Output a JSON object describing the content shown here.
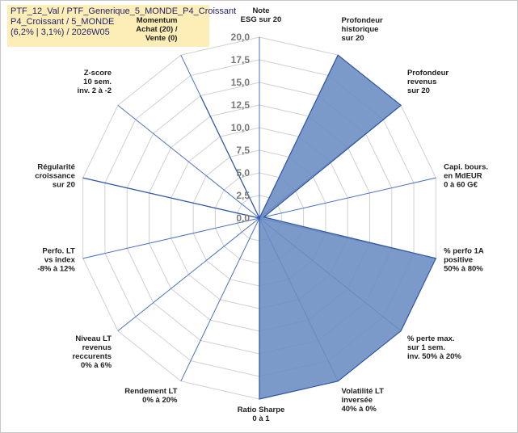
{
  "title": {
    "line1": "PTF_12_Val / PTF_Generique_5_MONDE_P4_Croissant",
    "line2": "P4_Croissant / 5_MONDE",
    "line3": "(6,2% | 3,1%) / 2026W05"
  },
  "colors": {
    "fill": "#6a8cc2",
    "stroke": "#2f55a4",
    "grid": "#d0d0d0",
    "spoke": "#4a72c0"
  },
  "chart_data": {
    "type": "radar",
    "rlim": [
      0,
      20
    ],
    "ticks": [
      "0,0",
      "2,5",
      "5,0",
      "7,5",
      "10,0",
      "12,5",
      "15,0",
      "17,5",
      "20,0"
    ],
    "grid": true,
    "axes": [
      {
        "label": [
          "Note",
          "ESG sur 20"
        ],
        "value": 0
      },
      {
        "label": [
          "Profondeur",
          "historique",
          "sur 20"
        ],
        "value": 20
      },
      {
        "label": [
          "Profondeur",
          "revenus",
          "sur 20"
        ],
        "value": 20
      },
      {
        "label": [
          "Capi. bours.",
          "en MdEUR",
          "0 à 60 G€"
        ],
        "value": 0.5
      },
      {
        "label": [
          "% perfo 1A",
          "positive",
          "50% à 80%"
        ],
        "value": 20
      },
      {
        "label": [
          "% perte max.",
          "sur 1 sem.",
          "inv. 50% à 20%"
        ],
        "value": 20
      },
      {
        "label": [
          "Volatilité LT",
          "inversée",
          "40% à 0%"
        ],
        "value": 20
      },
      {
        "label": [
          "Ratio Sharpe",
          "0 à 1"
        ],
        "value": 20
      },
      {
        "label": [
          "Rendement LT",
          "0% à 20%"
        ],
        "value": 0
      },
      {
        "label": [
          "Niveau LT",
          "revenus",
          "reccurents",
          "0% à 6%"
        ],
        "value": 0
      },
      {
        "label": [
          "Perfo. LT",
          "vs index",
          "-8% à 12%"
        ],
        "value": 0
      },
      {
        "label": [
          "Régularité",
          "croissance",
          "sur 20"
        ],
        "value": 20
      },
      {
        "label": [
          "Z-score",
          "10 sem.",
          "inv. 2 à -2"
        ],
        "value": 0
      },
      {
        "label": [
          "Momentum",
          "Achat (20) /",
          "Vente (0)"
        ],
        "value": 15
      }
    ]
  }
}
